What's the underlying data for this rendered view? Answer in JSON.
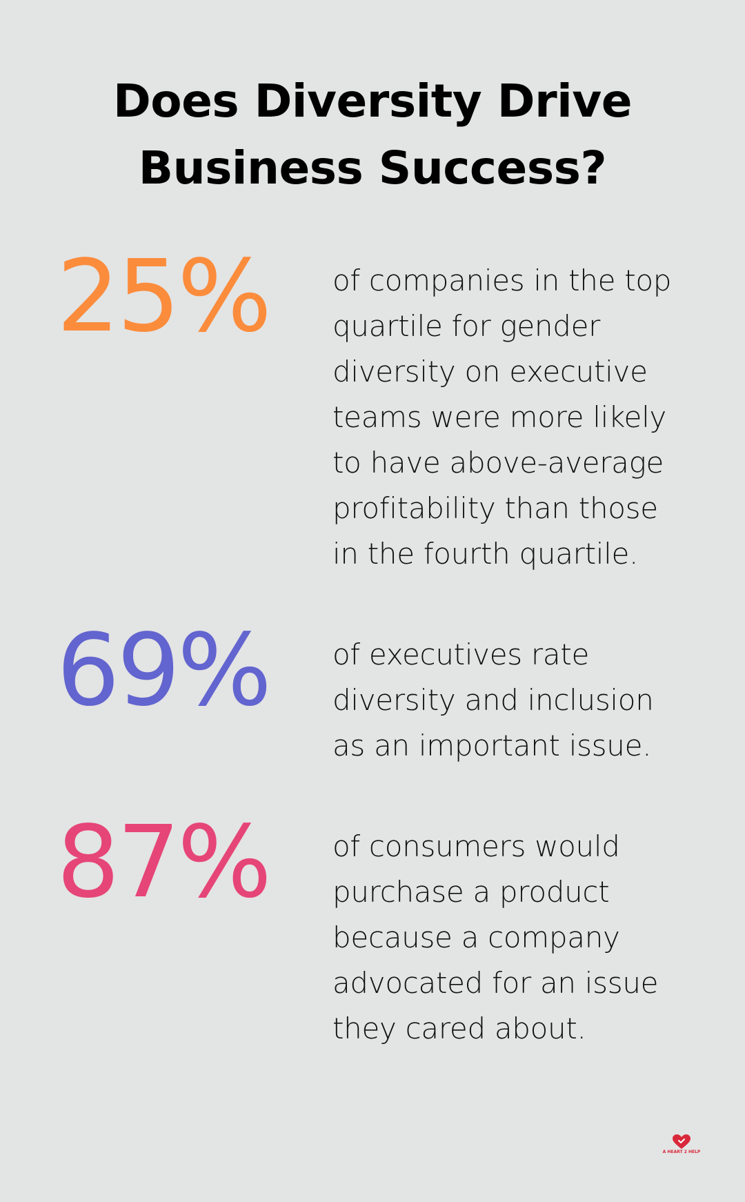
{
  "title": {
    "line1": "Does Diversity Drive",
    "line2": "Business Success?"
  },
  "stats": [
    {
      "value": "25%",
      "color": "#fb8c3c",
      "description": "of companies in the top quartile for gender diversity on executive teams were more likely to have above-average profitability than those in the fourth quartile."
    },
    {
      "value": "69%",
      "color": "#6264cf",
      "description": "of executives rate diversity and inclusion as an important issue."
    },
    {
      "value": "87%",
      "color": "#e64577",
      "description": "of consumers would purchase a product because a company advocated for an issue they cared about."
    }
  ],
  "logo": {
    "text": "A HEART 2 HELP",
    "icon": "heart-icon",
    "color": "#d8283a"
  }
}
